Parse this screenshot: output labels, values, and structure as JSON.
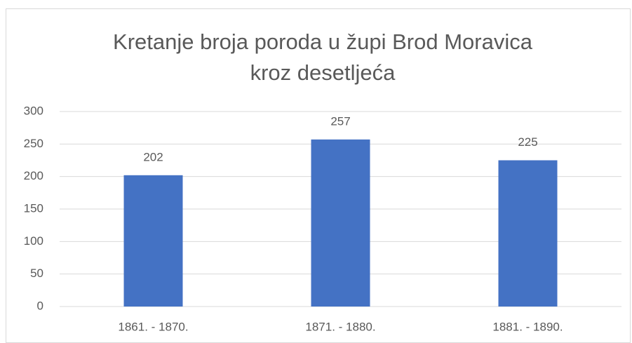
{
  "chart_data": {
    "type": "bar",
    "title": [
      "Kretanje broja poroda u župi Brod Moravica",
      "kroz desetljeća"
    ],
    "categories": [
      "1861. - 1870.",
      "1871. - 1880.",
      "1881. - 1890."
    ],
    "values": [
      202,
      257,
      225
    ],
    "color": "#4472c4",
    "ylim": [
      0,
      300
    ],
    "yticks": [
      0,
      50,
      100,
      150,
      200,
      250,
      300
    ],
    "grid": true
  }
}
